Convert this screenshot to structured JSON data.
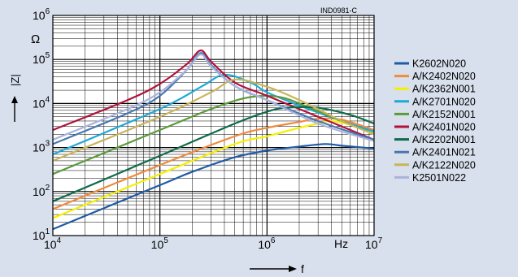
{
  "chart_data": {
    "type": "line",
    "title": "",
    "code": "IND0981-C",
    "xlabel": "f",
    "ylabel": "|Z|",
    "xunit": "Hz",
    "yunit": "Ω",
    "xscale": "log",
    "yscale": "log",
    "xlim": [
      10000,
      10000000
    ],
    "ylim": [
      10,
      1000000
    ],
    "grid": true,
    "legend": "right",
    "xticks": [
      {
        "value": 10000,
        "base": "10",
        "exp": "4"
      },
      {
        "value": 100000,
        "base": "10",
        "exp": "5"
      },
      {
        "value": 1000000,
        "base": "10",
        "exp": "6"
      },
      {
        "value": 10000000,
        "base": "10",
        "exp": "7"
      }
    ],
    "yticks": [
      {
        "value": 10,
        "base": "10",
        "exp": "1"
      },
      {
        "value": 100,
        "base": "10",
        "exp": "2"
      },
      {
        "value": 1000,
        "base": "10",
        "exp": "3"
      },
      {
        "value": 10000,
        "base": "10",
        "exp": "4"
      },
      {
        "value": 100000,
        "base": "10",
        "exp": "5"
      },
      {
        "value": 1000000,
        "base": "10",
        "exp": "6"
      }
    ],
    "series": [
      {
        "name": "K2602N020",
        "color": "#1f5aa6",
        "x": [
          10000,
          100000,
          200000,
          500000,
          1000000,
          2000000,
          3500000,
          5000000,
          10000000
        ],
        "y": [
          14,
          140,
          280,
          600,
          850,
          1050,
          1200,
          1100,
          950
        ]
      },
      {
        "name": "A/K2402N020",
        "color": "#f08a3c",
        "x": [
          10000,
          100000,
          500000,
          1000000,
          2000000,
          3000000,
          5000000,
          10000000
        ],
        "y": [
          40,
          400,
          1800,
          2800,
          3800,
          4500,
          4300,
          2500
        ]
      },
      {
        "name": "A/K2362N001",
        "color": "#f5f000",
        "x": [
          10000,
          100000,
          500000,
          1000000,
          2000000,
          3000000,
          4000000,
          6000000,
          10000000
        ],
        "y": [
          25,
          250,
          1200,
          1800,
          2800,
          3500,
          4000,
          3300,
          2200
        ]
      },
      {
        "name": "A/K2701N020",
        "color": "#1fa8d6",
        "x": [
          10000,
          100000,
          250000,
          400000,
          700000,
          1000000,
          2000000,
          5000000,
          10000000
        ],
        "y": [
          700,
          7500,
          25000,
          45000,
          30000,
          18000,
          9000,
          4000,
          2300
        ]
      },
      {
        "name": "A/K2152N001",
        "color": "#5a9a3a",
        "x": [
          10000,
          100000,
          300000,
          600000,
          1000000,
          1500000,
          2500000,
          5000000,
          10000000
        ],
        "y": [
          250,
          2500,
          7500,
          13000,
          15000,
          13000,
          8000,
          4000,
          2000
        ]
      },
      {
        "name": "A/K2401N020",
        "color": "#b0123c",
        "x": [
          10000,
          50000,
          100000,
          180000,
          240000,
          300000,
          500000,
          1000000,
          3000000,
          10000000
        ],
        "y": [
          2500,
          12000,
          28000,
          80000,
          160000,
          90000,
          30000,
          15000,
          5000,
          1500
        ]
      },
      {
        "name": "A/K2202N001",
        "color": "#0f6a4a",
        "x": [
          10000,
          100000,
          500000,
          1000000,
          1500000,
          3000000,
          6000000,
          10000000
        ],
        "y": [
          60,
          650,
          3500,
          6500,
          8000,
          8000,
          5500,
          3500
        ]
      },
      {
        "name": "A/K2401N021",
        "color": "#4a76b0",
        "x": [
          10000,
          50000,
          100000,
          180000,
          240000,
          300000,
          500000,
          1000000,
          3000000,
          10000000
        ],
        "y": [
          1200,
          6000,
          15000,
          60000,
          140000,
          75000,
          25000,
          12000,
          4000,
          1500
        ]
      },
      {
        "name": "A/K2122N020",
        "color": "#c8b45a",
        "x": [
          10000,
          100000,
          300000,
          500000,
          1000000,
          2000000,
          5000000,
          10000000
        ],
        "y": [
          500,
          5000,
          18000,
          35000,
          24000,
          12000,
          4000,
          2000
        ]
      },
      {
        "name": "K2501N022",
        "color": "#a8b4dc",
        "x": [
          10000,
          50000,
          100000,
          180000,
          240000,
          300000,
          500000,
          1000000,
          3000000,
          10000000
        ],
        "y": [
          1500,
          7500,
          18000,
          60000,
          130000,
          70000,
          25000,
          12000,
          3500,
          1400
        ]
      }
    ]
  }
}
